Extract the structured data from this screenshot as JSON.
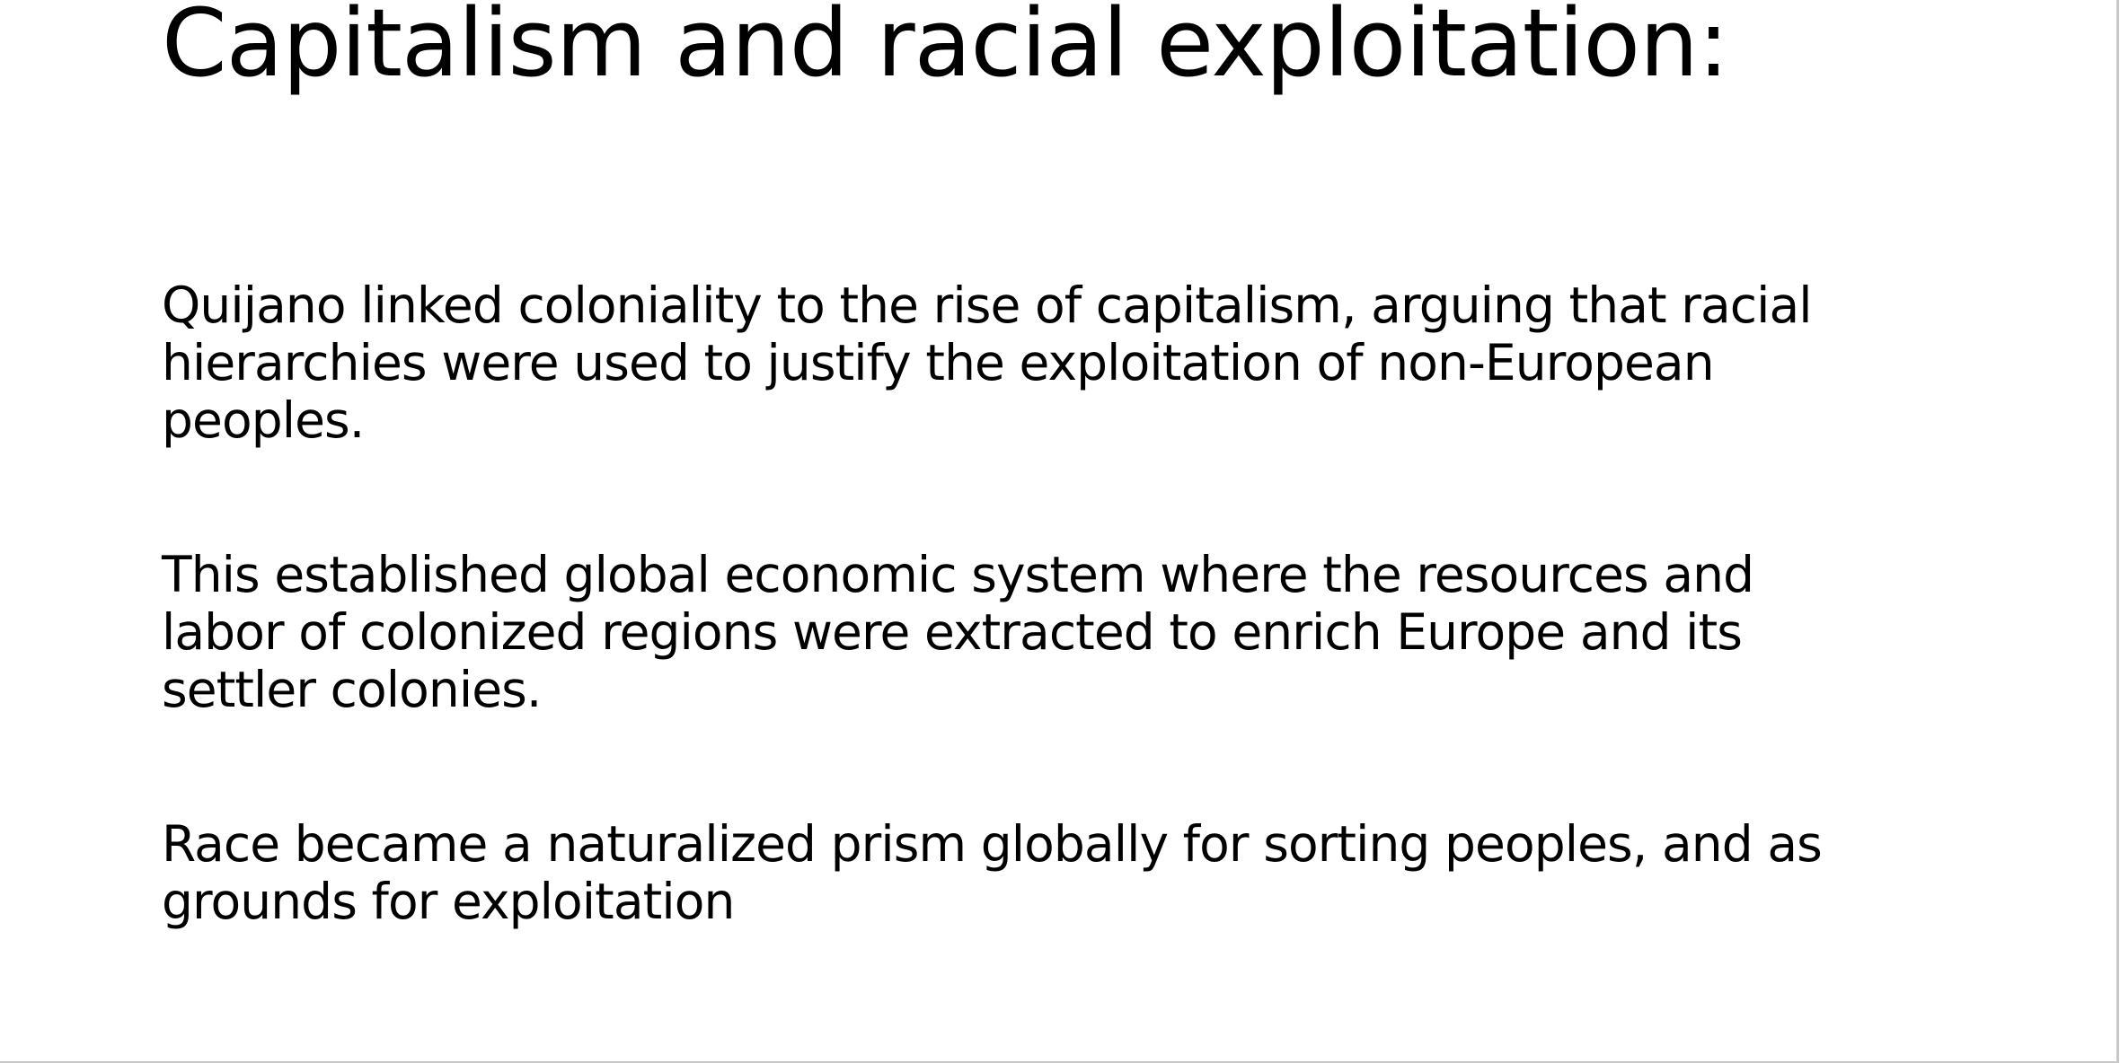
{
  "slide": {
    "title": "Capitalism and racial exploitation:",
    "bullets": [
      {
        "lines": [
          "Quijano linked coloniality to the rise of capitalism, arguing that racial",
          "hierarchies were used to justify the exploitation of non-European",
          "peoples."
        ]
      },
      {
        "lines": [
          "This established global economic system where the resources and",
          "labor of colonized regions were extracted to enrich Europe and its",
          "settler colonies."
        ]
      },
      {
        "lines": [
          "Race became a naturalized prism globally for sorting peoples, and as",
          "grounds for exploitation"
        ]
      }
    ]
  }
}
